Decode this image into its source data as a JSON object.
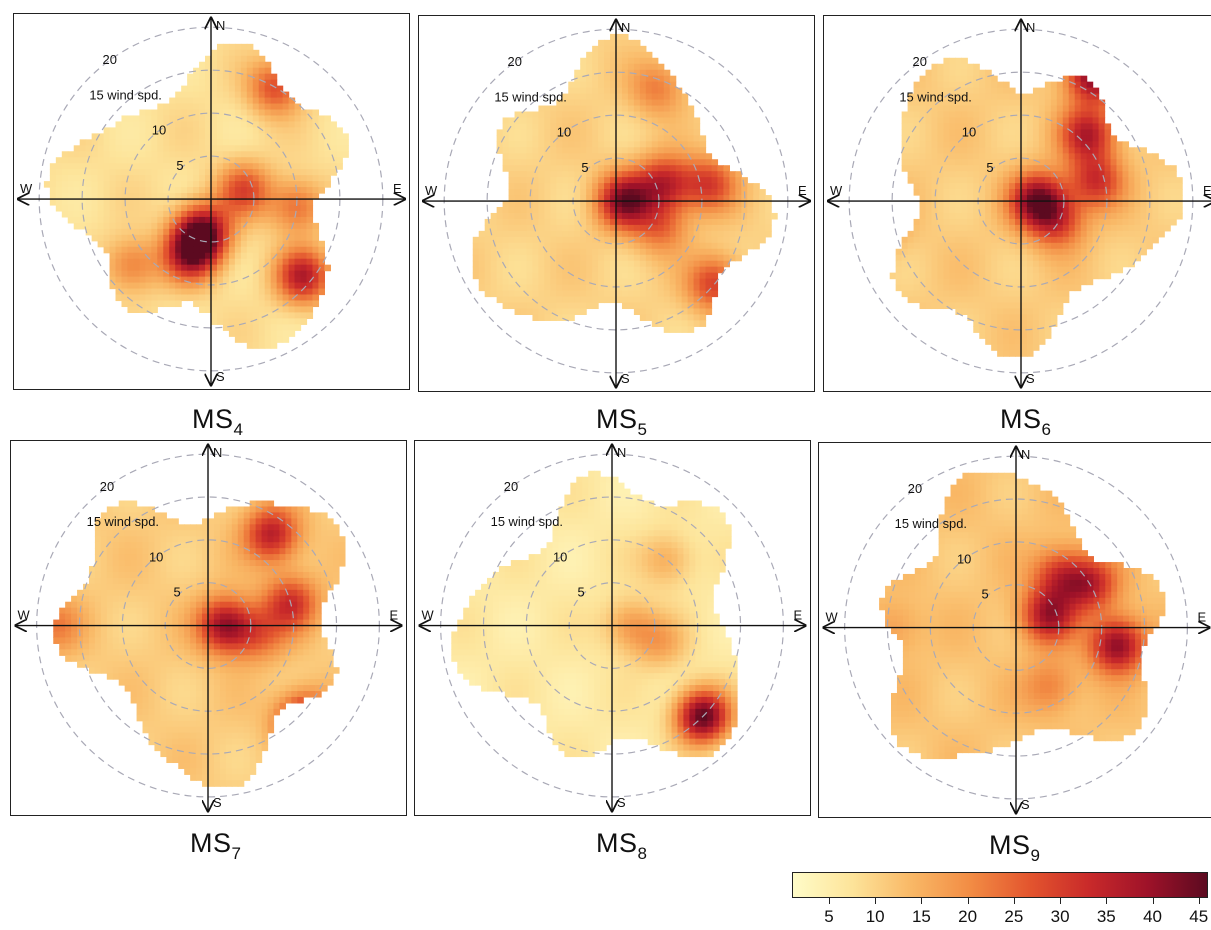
{
  "chart_data": {
    "type": "heatmap",
    "description_type": "polar wind-speed heatmaps",
    "color_scale": {
      "min": 1,
      "max": 46,
      "ticks": [
        5,
        10,
        15,
        20,
        25,
        30,
        35,
        40,
        45
      ],
      "tick_labels": [
        "5",
        "10",
        "15",
        "20",
        "25",
        "30",
        "35",
        "40",
        "45"
      ],
      "colors": [
        "#fffcc8",
        "#fde49a",
        "#f9b866",
        "#f28c44",
        "#e3552e",
        "#c92a2a",
        "#9e1229",
        "#5c0a20"
      ]
    },
    "radial_axis": {
      "rings": [
        5,
        10,
        15,
        20
      ],
      "ring_labels": [
        "5",
        "10",
        "15 wind spd.",
        "20"
      ],
      "max": 22
    },
    "compass": [
      "N",
      "E",
      "S",
      "W"
    ],
    "panels": [
      {
        "label": "MS",
        "subscript": "4",
        "hotspots": [
          {
            "dir_deg": 195,
            "speed": 4,
            "value": 44
          },
          {
            "dir_deg": 200,
            "speed": 7,
            "value": 36
          },
          {
            "dir_deg": 75,
            "speed": 4,
            "value": 28
          },
          {
            "dir_deg": 30,
            "speed": 15,
            "value": 28
          },
          {
            "dir_deg": 130,
            "speed": 14,
            "value": 36
          },
          {
            "dir_deg": 95,
            "speed": 10,
            "value": 24
          },
          {
            "dir_deg": 230,
            "speed": 12,
            "value": 22
          }
        ],
        "base": 8
      },
      {
        "label": "MS",
        "subscript": "5",
        "hotspots": [
          {
            "dir_deg": 90,
            "speed": 1,
            "value": 42
          },
          {
            "dir_deg": 70,
            "speed": 6,
            "value": 34
          },
          {
            "dir_deg": 80,
            "speed": 11,
            "value": 30
          },
          {
            "dir_deg": 130,
            "speed": 15,
            "value": 30
          },
          {
            "dir_deg": 20,
            "speed": 14,
            "value": 22
          },
          {
            "dir_deg": 120,
            "speed": 6,
            "value": 24
          }
        ],
        "base": 10
      },
      {
        "label": "MS",
        "subscript": "6",
        "hotspots": [
          {
            "dir_deg": 90,
            "speed": 2,
            "value": 44
          },
          {
            "dir_deg": 30,
            "speed": 17,
            "value": 44
          },
          {
            "dir_deg": 45,
            "speed": 11,
            "value": 36
          },
          {
            "dir_deg": 75,
            "speed": 9,
            "value": 32
          },
          {
            "dir_deg": 120,
            "speed": 5,
            "value": 28
          },
          {
            "dir_deg": 260,
            "speed": 17,
            "value": 20
          }
        ],
        "base": 11
      },
      {
        "label": "MS",
        "subscript": "7",
        "hotspots": [
          {
            "dir_deg": 90,
            "speed": 2,
            "value": 40
          },
          {
            "dir_deg": 35,
            "speed": 13,
            "value": 36
          },
          {
            "dir_deg": 75,
            "speed": 10,
            "value": 32
          },
          {
            "dir_deg": 135,
            "speed": 16,
            "value": 44
          },
          {
            "dir_deg": 270,
            "speed": 18,
            "value": 22
          },
          {
            "dir_deg": 100,
            "speed": 6,
            "value": 24
          }
        ],
        "base": 11
      },
      {
        "label": "MS",
        "subscript": "8",
        "hotspots": [
          {
            "dir_deg": 135,
            "speed": 15,
            "value": 46
          },
          {
            "dir_deg": 90,
            "speed": 2,
            "value": 18
          },
          {
            "dir_deg": 40,
            "speed": 10,
            "value": 16
          },
          {
            "dir_deg": 110,
            "speed": 6,
            "value": 16
          }
        ],
        "base": 6
      },
      {
        "label": "MS",
        "subscript": "9",
        "hotspots": [
          {
            "dir_deg": 70,
            "speed": 4,
            "value": 38
          },
          {
            "dir_deg": 100,
            "speed": 12,
            "value": 42
          },
          {
            "dir_deg": 60,
            "speed": 10,
            "value": 34
          },
          {
            "dir_deg": 40,
            "speed": 8,
            "value": 30
          },
          {
            "dir_deg": 150,
            "speed": 8,
            "value": 22
          },
          {
            "dir_deg": 270,
            "speed": 14,
            "value": 18
          }
        ],
        "base": 12
      }
    ]
  }
}
